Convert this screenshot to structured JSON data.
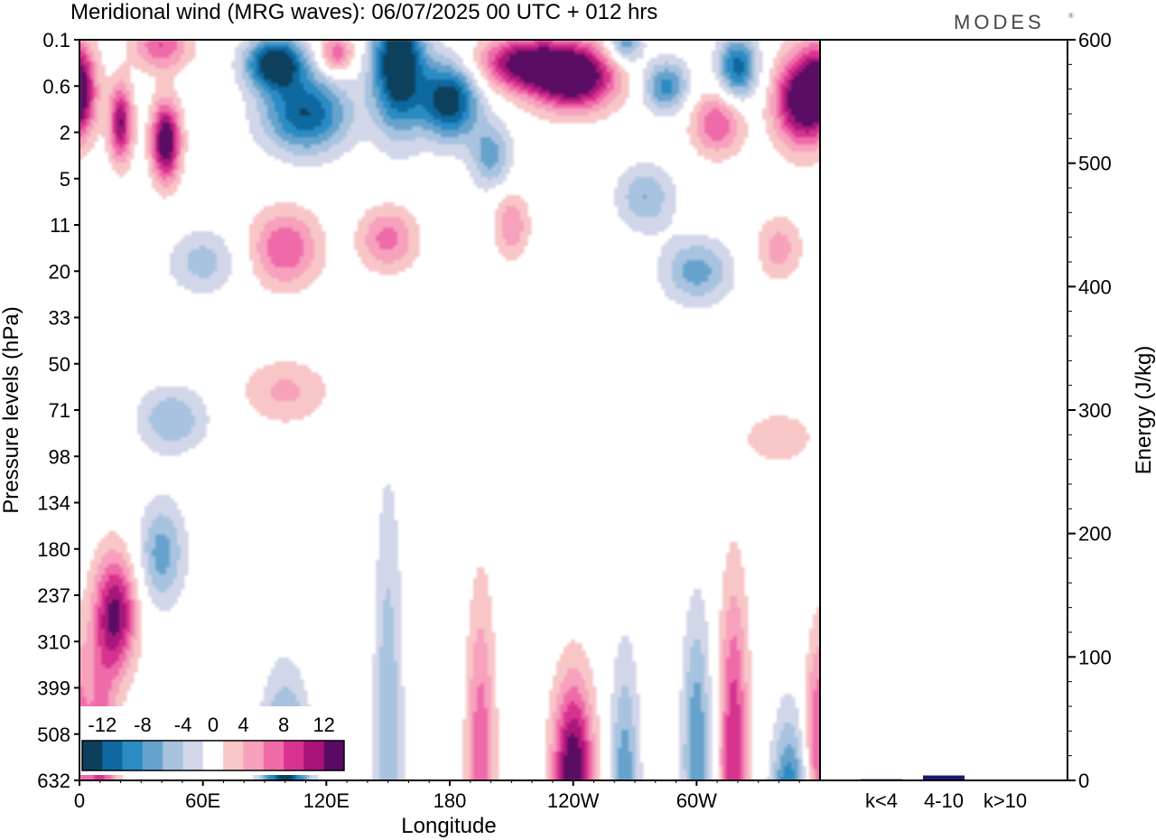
{
  "header": {
    "title": "Meridional wind (MRG waves):  06/07/2025  00 UTC  + 012 hrs",
    "logo": "MODES"
  },
  "chart_data": [
    {
      "type": "heatmap",
      "title": "Meridional wind (MRG waves):  06/07/2025  00 UTC  + 012 hrs",
      "xlabel": "Longitude",
      "ylabel": "Pressure levels (hPa)",
      "x_ticks": [
        "0",
        "60E",
        "120E",
        "180",
        "120W",
        "60W"
      ],
      "x_tick_degrees": [
        0,
        60,
        120,
        180,
        240,
        300
      ],
      "x_range": [
        0,
        360
      ],
      "y_ticks": [
        "0.1",
        "0.6",
        "2",
        "5",
        "11",
        "20",
        "33",
        "50",
        "71",
        "98",
        "134",
        "180",
        "237",
        "310",
        "399",
        "508",
        "632"
      ],
      "colorbar": {
        "labels": [
          "-12",
          "-8",
          "-4",
          "0",
          "4",
          "8",
          "12"
        ],
        "levels": [
          -14,
          -12,
          -10,
          -8,
          -6,
          -4,
          -2,
          2,
          4,
          6,
          8,
          10,
          12,
          14
        ],
        "colors": [
          "#0b3f5c",
          "#1069a0",
          "#2b8cc4",
          "#66a3cc",
          "#a7c3df",
          "#d2d6e9",
          "#ffffff",
          "#f8c6c7",
          "#f7a1bd",
          "#ef6ba8",
          "#d8338f",
          "#a8137a",
          "#5a0a63"
        ],
        "placement": "bottom-left"
      },
      "fields": [
        {
          "lon": 20,
          "lev": 1.8,
          "sx": 4,
          "sy": 0.6,
          "amp": 12
        },
        {
          "lon": 42,
          "lev": 2.2,
          "sx": 5,
          "sy": 0.6,
          "amp": 15
        },
        {
          "lon": 0,
          "lev": 1.0,
          "sx": 6,
          "sy": 0.7,
          "amp": 10
        },
        {
          "lon": 40,
          "lev": 0.1,
          "sx": 10,
          "sy": 0.4,
          "amp": 8
        },
        {
          "lon": 125,
          "lev": 0.3,
          "sx": 6,
          "sy": 0.3,
          "amp": 8
        },
        {
          "lon": 95,
          "lev": 0.5,
          "sx": 10,
          "sy": 0.4,
          "amp": -15
        },
        {
          "lon": 110,
          "lev": 1.6,
          "sx": 15,
          "sy": 0.6,
          "amp": -12
        },
        {
          "lon": 155,
          "lev": 0.5,
          "sx": 9,
          "sy": 1.0,
          "amp": -16
        },
        {
          "lon": 180,
          "lev": 1.3,
          "sx": 10,
          "sy": 0.6,
          "amp": -14
        },
        {
          "lon": 200,
          "lev": 2.5,
          "sx": 7,
          "sy": 0.5,
          "amp": -7
        },
        {
          "lon": 215,
          "lev": 0.5,
          "sx": 16,
          "sy": 0.4,
          "amp": 12
        },
        {
          "lon": 240,
          "lev": 0.8,
          "sx": 15,
          "sy": 0.5,
          "amp": 16
        },
        {
          "lon": 265,
          "lev": 0.1,
          "sx": 6,
          "sy": 0.3,
          "amp": -8
        },
        {
          "lon": 285,
          "lev": 1.0,
          "sx": 8,
          "sy": 0.4,
          "amp": -9
        },
        {
          "lon": 320,
          "lev": 0.6,
          "sx": 7,
          "sy": 0.5,
          "amp": -11
        },
        {
          "lon": 350,
          "lev": 1.3,
          "sx": 9,
          "sy": 0.7,
          "amp": 14
        },
        {
          "lon": 310,
          "lev": 1.8,
          "sx": 9,
          "sy": 0.5,
          "amp": 8
        },
        {
          "lon": 275,
          "lev": 3.4,
          "sx": 10,
          "sy": 0.5,
          "amp": -6
        },
        {
          "lon": 100,
          "lev": 4.5,
          "sx": 12,
          "sy": 0.6,
          "amp": 8
        },
        {
          "lon": 150,
          "lev": 4.3,
          "sx": 10,
          "sy": 0.5,
          "amp": 7
        },
        {
          "lon": 60,
          "lev": 4.8,
          "sx": 12,
          "sy": 0.5,
          "amp": -5
        },
        {
          "lon": 210,
          "lev": 4.0,
          "sx": 6,
          "sy": 0.5,
          "amp": 6
        },
        {
          "lon": 300,
          "lev": 5.0,
          "sx": 12,
          "sy": 0.5,
          "amp": -7
        },
        {
          "lon": 340,
          "lev": 4.5,
          "sx": 8,
          "sy": 0.5,
          "amp": 5
        },
        {
          "lon": 100,
          "lev": 7.6,
          "sx": 15,
          "sy": 0.5,
          "amp": 4.5
        },
        {
          "lon": 45,
          "lev": 8.2,
          "sx": 12,
          "sy": 0.5,
          "amp": -6
        },
        {
          "lon": 340,
          "lev": 8.6,
          "sx": 12,
          "sy": 0.4,
          "amp": 4
        },
        {
          "lon": 40,
          "lev": 11.1,
          "sx": 8,
          "sy": 0.8,
          "amp": -7
        },
        {
          "lon": 18,
          "lev": 12.4,
          "sx": 7,
          "sy": 0.9,
          "amp": 12
        },
        {
          "lon": 10,
          "lev": 16.5,
          "sx": 6,
          "sy": 2.5,
          "amp": 9
        },
        {
          "lon": 100,
          "lev": 16.5,
          "sx": 8,
          "sy": 1.6,
          "amp": -14
        },
        {
          "lon": 150,
          "lev": 15.5,
          "sx": 5,
          "sy": 4.0,
          "amp": -6
        },
        {
          "lon": 195,
          "lev": 16.0,
          "sx": 5,
          "sy": 2.8,
          "amp": 8
        },
        {
          "lon": 240,
          "lev": 16.0,
          "sx": 7,
          "sy": 1.5,
          "amp": 15
        },
        {
          "lon": 265,
          "lev": 16.5,
          "sx": 5,
          "sy": 2.2,
          "amp": -8
        },
        {
          "lon": 300,
          "lev": 15.5,
          "sx": 5,
          "sy": 2.2,
          "amp": -8
        },
        {
          "lon": 318,
          "lev": 15.5,
          "sx": 5,
          "sy": 2.6,
          "amp": 10
        },
        {
          "lon": 345,
          "lev": 17.2,
          "sx": 6,
          "sy": 1.6,
          "amp": -13
        },
        {
          "lon": 358,
          "lev": 15.0,
          "sx": 4,
          "sy": 1.5,
          "amp": 7
        }
      ]
    },
    {
      "type": "bar",
      "ylabel": "Energy (J/kg)",
      "categories": [
        "k<4",
        "4-10",
        "k>10"
      ],
      "values": [
        1,
        4,
        0
      ],
      "ylim": [
        0,
        600
      ],
      "y_ticks": [
        "0",
        "100",
        "200",
        "300",
        "400",
        "500",
        "600"
      ],
      "bar_color": "#1b1b6e"
    }
  ]
}
